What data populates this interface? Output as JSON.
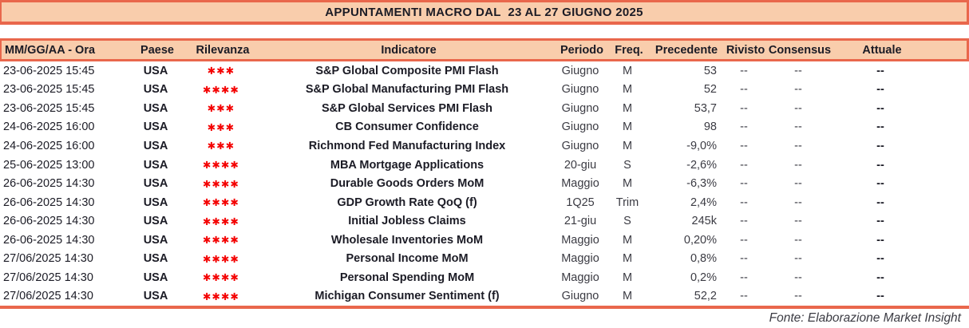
{
  "title": "APPUNTAMENTI MACRO DAL  23 AL 27 GIUGNO 2025",
  "footer": "Fonte: Elaborazione Market Insight",
  "colors": {
    "accent_line": "#e9674c",
    "band_background": "#f9cdac",
    "text": "#1b1b25",
    "star_red": "#f40000"
  },
  "columns": [
    "MM/GG/AA - Ora",
    "Paese",
    "Rilevanza",
    "Indicatore",
    "Periodo",
    "Freq.",
    "Precedente",
    "Rivisto",
    "Consensus",
    "Attuale"
  ],
  "rows": [
    {
      "datetime": "23-06-2025 15:45",
      "paese": "USA",
      "rilevanza": 3,
      "indicatore": "S&P Global Composite PMI Flash",
      "periodo": "Giugno",
      "freq": "M",
      "precedente": "53",
      "rivisto": "--",
      "consensus": "--",
      "attuale": "--"
    },
    {
      "datetime": "23-06-2025 15:45",
      "paese": "USA",
      "rilevanza": 4,
      "indicatore": "S&P Global Manufacturing PMI Flash",
      "periodo": "Giugno",
      "freq": "M",
      "precedente": "52",
      "rivisto": "--",
      "consensus": "--",
      "attuale": "--"
    },
    {
      "datetime": "23-06-2025 15:45",
      "paese": "USA",
      "rilevanza": 3,
      "indicatore": "S&P Global Services PMI Flash",
      "periodo": "Giugno",
      "freq": "M",
      "precedente": "53,7",
      "rivisto": "--",
      "consensus": "--",
      "attuale": "--"
    },
    {
      "datetime": "24-06-2025 16:00",
      "paese": "USA",
      "rilevanza": 3,
      "indicatore": "CB Consumer Confidence",
      "periodo": "Giugno",
      "freq": "M",
      "precedente": "98",
      "rivisto": "--",
      "consensus": "--",
      "attuale": "--"
    },
    {
      "datetime": "24-06-2025 16:00",
      "paese": "USA",
      "rilevanza": 3,
      "indicatore": "Richmond Fed Manufacturing Index",
      "periodo": "Giugno",
      "freq": "M",
      "precedente": "-9,0%",
      "rivisto": "--",
      "consensus": "--",
      "attuale": "--"
    },
    {
      "datetime": "25-06-2025 13:00",
      "paese": "USA",
      "rilevanza": 4,
      "indicatore": "MBA Mortgage Applications",
      "periodo": "20-giu",
      "freq": "S",
      "precedente": "-2,6%",
      "rivisto": "--",
      "consensus": "--",
      "attuale": "--"
    },
    {
      "datetime": "26-06-2025 14:30",
      "paese": "USA",
      "rilevanza": 4,
      "indicatore": "Durable Goods Orders MoM",
      "periodo": "Maggio",
      "freq": "M",
      "precedente": "-6,3%",
      "rivisto": "--",
      "consensus": "--",
      "attuale": "--"
    },
    {
      "datetime": "26-06-2025 14:30",
      "paese": "USA",
      "rilevanza": 4,
      "indicatore": "GDP Growth Rate QoQ (f)",
      "periodo": "1Q25",
      "freq": "Trim",
      "precedente": "2,4%",
      "rivisto": "--",
      "consensus": "--",
      "attuale": "--"
    },
    {
      "datetime": "26-06-2025 14:30",
      "paese": "USA",
      "rilevanza": 4,
      "indicatore": "Initial Jobless Claims",
      "periodo": "21-giu",
      "freq": "S",
      "precedente": "245k",
      "rivisto": "--",
      "consensus": "--",
      "attuale": "--"
    },
    {
      "datetime": "26-06-2025 14:30",
      "paese": "USA",
      "rilevanza": 4,
      "indicatore": "Wholesale Inventories MoM",
      "periodo": "Maggio",
      "freq": "M",
      "precedente": "0,20%",
      "rivisto": "--",
      "consensus": "--",
      "attuale": "--"
    },
    {
      "datetime": "27/06/2025 14:30",
      "paese": "USA",
      "rilevanza": 4,
      "indicatore": "Personal Income MoM",
      "periodo": "Maggio",
      "freq": "M",
      "precedente": "0,8%",
      "rivisto": "--",
      "consensus": "--",
      "attuale": "--"
    },
    {
      "datetime": "27/06/2025 14:30",
      "paese": "USA",
      "rilevanza": 4,
      "indicatore": "Personal Spending MoM",
      "periodo": "Maggio",
      "freq": "M",
      "precedente": "0,2%",
      "rivisto": "--",
      "consensus": "--",
      "attuale": "--"
    },
    {
      "datetime": "27/06/2025 14:30",
      "paese": "USA",
      "rilevanza": 4,
      "indicatore": "Michigan Consumer Sentiment (f)",
      "periodo": "Giugno",
      "freq": "M",
      "precedente": "52,2",
      "rivisto": "--",
      "consensus": "--",
      "attuale": "--"
    }
  ]
}
